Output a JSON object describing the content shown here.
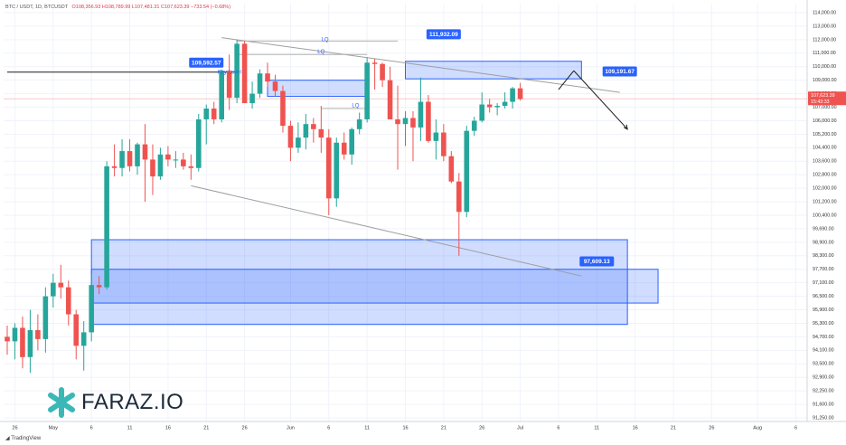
{
  "header": {
    "symbol": "BTC / USDT, 1D, BTCUSDT",
    "ohlc": "O108,356.93 H108,789.99 L107,481.31 C107,623.39 −733.54 (−0.68%)"
  },
  "brand": {
    "name": "FARAZ.IO",
    "footer": "TradingView"
  },
  "colors": {
    "up": "#26a69a",
    "down": "#ef5350",
    "zone_fill": "#2962ff",
    "zone_border": "#2962ff",
    "label_bg": "#2962ff",
    "grid": "#f0f3fa",
    "price_line": "#ef5350"
  },
  "chart_data": {
    "type": "candlestick",
    "y_axis": {
      "min": 91250,
      "max": 114000,
      "ticks": [
        "114,000.00",
        "113,000.00",
        "112,000.00",
        "111,000.00",
        "110,000.00",
        "109,000.00",
        "108,000.00",
        "107,000.00",
        "106,000.00",
        "105,200.00",
        "104,400.00",
        "103,600.00",
        "102,800.00",
        "102,000.00",
        "101,200.00",
        "100,400.00",
        "99,690.00",
        "98,900.00",
        "98,300.00",
        "97,700.00",
        "97,100.00",
        "96,500.00",
        "95,900.00",
        "95,300.00",
        "94,700.00",
        "94,100.00",
        "93,500.00",
        "92,900.00",
        "92,250.00",
        "91,600.00",
        "91,250.00"
      ],
      "tick_values": [
        114000,
        113000,
        112000,
        111000,
        110000,
        109000,
        108000,
        107000,
        106000,
        105200,
        104400,
        103600,
        102800,
        102000,
        101200,
        100400,
        99690,
        98900,
        98300,
        97700,
        97100,
        96500,
        95900,
        95300,
        94700,
        94100,
        93500,
        92900,
        92250,
        91600,
        91250
      ]
    },
    "x_axis": {
      "labels": [
        "26",
        "May",
        "6",
        "11",
        "16",
        "21",
        "26",
        "Jun",
        "6",
        "11",
        "16",
        "21",
        "26",
        "Jul",
        "6",
        "11",
        "16",
        "21",
        "26",
        "Aug",
        "6"
      ],
      "label_day_index": [
        -4,
        1,
        6,
        11,
        16,
        21,
        26,
        32,
        37,
        42,
        47,
        52,
        57,
        62,
        67,
        72,
        77,
        82,
        87,
        93,
        98
      ],
      "start_day_index": -5,
      "end_day_index": 99
    },
    "current_price": {
      "value": "107,623.39",
      "countdown": "15:43:33",
      "y": 107623
    },
    "candles": [
      {
        "d": -5,
        "o": 94700,
        "h": 95200,
        "l": 93900,
        "c": 94500
      },
      {
        "d": -4,
        "o": 94500,
        "h": 95300,
        "l": 93700,
        "c": 95100
      },
      {
        "d": -3,
        "o": 95100,
        "h": 95600,
        "l": 93300,
        "c": 93800
      },
      {
        "d": -2,
        "o": 93800,
        "h": 95900,
        "l": 93100,
        "c": 95000
      },
      {
        "d": -1,
        "o": 95000,
        "h": 95700,
        "l": 94100,
        "c": 94600
      },
      {
        "d": 0,
        "o": 94600,
        "h": 96900,
        "l": 94000,
        "c": 96500
      },
      {
        "d": 1,
        "o": 96500,
        "h": 97500,
        "l": 96000,
        "c": 97100
      },
      {
        "d": 2,
        "o": 97100,
        "h": 97900,
        "l": 96400,
        "c": 96900
      },
      {
        "d": 3,
        "o": 96900,
        "h": 97200,
        "l": 95200,
        "c": 95700
      },
      {
        "d": 4,
        "o": 95700,
        "h": 95900,
        "l": 93700,
        "c": 94300
      },
      {
        "d": 5,
        "o": 94300,
        "h": 95400,
        "l": 93200,
        "c": 94900
      },
      {
        "d": 6,
        "o": 94900,
        "h": 97500,
        "l": 94500,
        "c": 97000
      },
      {
        "d": 7,
        "o": 97000,
        "h": 97400,
        "l": 96600,
        "c": 96900
      },
      {
        "d": 8,
        "o": 96900,
        "h": 103600,
        "l": 96800,
        "c": 103300
      },
      {
        "d": 9,
        "o": 103300,
        "h": 104600,
        "l": 102700,
        "c": 103200
      },
      {
        "d": 10,
        "o": 103200,
        "h": 104900,
        "l": 102700,
        "c": 104200
      },
      {
        "d": 11,
        "o": 104200,
        "h": 104900,
        "l": 103000,
        "c": 103300
      },
      {
        "d": 12,
        "o": 103300,
        "h": 104700,
        "l": 102800,
        "c": 104600
      },
      {
        "d": 13,
        "o": 104600,
        "h": 105800,
        "l": 101200,
        "c": 103700
      },
      {
        "d": 14,
        "o": 103700,
        "h": 104600,
        "l": 101600,
        "c": 102700
      },
      {
        "d": 15,
        "o": 102700,
        "h": 104400,
        "l": 102500,
        "c": 104000
      },
      {
        "d": 16,
        "o": 104000,
        "h": 104500,
        "l": 103300,
        "c": 103700
      },
      {
        "d": 17,
        "o": 103700,
        "h": 104200,
        "l": 103200,
        "c": 103700
      },
      {
        "d": 18,
        "o": 103700,
        "h": 104100,
        "l": 103100,
        "c": 103300
      },
      {
        "d": 19,
        "o": 103300,
        "h": 104000,
        "l": 102500,
        "c": 103200
      },
      {
        "d": 20,
        "o": 103200,
        "h": 106500,
        "l": 103000,
        "c": 106100
      },
      {
        "d": 21,
        "o": 106100,
        "h": 107200,
        "l": 104600,
        "c": 106900
      },
      {
        "d": 22,
        "o": 106900,
        "h": 107400,
        "l": 105800,
        "c": 106100
      },
      {
        "d": 23,
        "o": 106100,
        "h": 109800,
        "l": 105900,
        "c": 109700
      },
      {
        "d": 24,
        "o": 109700,
        "h": 110900,
        "l": 106800,
        "c": 107700
      },
      {
        "d": 25,
        "o": 107700,
        "h": 112000,
        "l": 107300,
        "c": 111700
      },
      {
        "d": 26,
        "o": 111700,
        "h": 111900,
        "l": 107400,
        "c": 107300
      },
      {
        "d": 27,
        "o": 107300,
        "h": 108900,
        "l": 106900,
        "c": 108000
      },
      {
        "d": 28,
        "o": 108000,
        "h": 109800,
        "l": 107700,
        "c": 109500
      },
      {
        "d": 29,
        "o": 109500,
        "h": 110300,
        "l": 108500,
        "c": 108900
      },
      {
        "d": 30,
        "o": 108900,
        "h": 109400,
        "l": 107800,
        "c": 108200
      },
      {
        "d": 31,
        "o": 108200,
        "h": 108600,
        "l": 105300,
        "c": 105700
      },
      {
        "d": 32,
        "o": 105700,
        "h": 106000,
        "l": 103600,
        "c": 104400
      },
      {
        "d": 33,
        "o": 104400,
        "h": 105900,
        "l": 104100,
        "c": 105000
      },
      {
        "d": 34,
        "o": 105000,
        "h": 106500,
        "l": 104300,
        "c": 105800
      },
      {
        "d": 35,
        "o": 105800,
        "h": 106200,
        "l": 104700,
        "c": 105500
      },
      {
        "d": 36,
        "o": 105500,
        "h": 107100,
        "l": 104100,
        "c": 105000
      },
      {
        "d": 37,
        "o": 105000,
        "h": 105500,
        "l": 100400,
        "c": 101400
      },
      {
        "d": 38,
        "o": 101400,
        "h": 105000,
        "l": 100900,
        "c": 104700
      },
      {
        "d": 39,
        "o": 104700,
        "h": 105300,
        "l": 103700,
        "c": 104000
      },
      {
        "d": 40,
        "o": 104000,
        "h": 105600,
        "l": 103400,
        "c": 105500
      },
      {
        "d": 41,
        "o": 105500,
        "h": 106600,
        "l": 105200,
        "c": 106100
      },
      {
        "d": 42,
        "o": 106100,
        "h": 110700,
        "l": 105900,
        "c": 110300
      },
      {
        "d": 43,
        "o": 110300,
        "h": 110600,
        "l": 108300,
        "c": 110200
      },
      {
        "d": 44,
        "o": 110200,
        "h": 110300,
        "l": 108500,
        "c": 109000
      },
      {
        "d": 45,
        "o": 109000,
        "h": 110000,
        "l": 106100,
        "c": 106100
      },
      {
        "d": 46,
        "o": 106100,
        "h": 108600,
        "l": 103100,
        "c": 105800
      },
      {
        "d": 47,
        "o": 105800,
        "h": 106700,
        "l": 104500,
        "c": 106200
      },
      {
        "d": 48,
        "o": 106200,
        "h": 106700,
        "l": 103600,
        "c": 105600
      },
      {
        "d": 49,
        "o": 105600,
        "h": 109200,
        "l": 104800,
        "c": 107400
      },
      {
        "d": 50,
        "o": 107400,
        "h": 107900,
        "l": 104700,
        "c": 104800
      },
      {
        "d": 51,
        "o": 104800,
        "h": 106100,
        "l": 103700,
        "c": 105300
      },
      {
        "d": 52,
        "o": 105300,
        "h": 105800,
        "l": 103600,
        "c": 103900
      },
      {
        "d": 53,
        "o": 103900,
        "h": 104200,
        "l": 102300,
        "c": 102400
      },
      {
        "d": 54,
        "o": 102400,
        "h": 102900,
        "l": 98300,
        "c": 100600
      },
      {
        "d": 55,
        "o": 100600,
        "h": 105700,
        "l": 100300,
        "c": 105400
      },
      {
        "d": 56,
        "o": 105400,
        "h": 106300,
        "l": 105100,
        "c": 106000
      },
      {
        "d": 57,
        "o": 106000,
        "h": 108100,
        "l": 105900,
        "c": 107200
      },
      {
        "d": 58,
        "o": 107200,
        "h": 107600,
        "l": 106600,
        "c": 107000
      },
      {
        "d": 59,
        "o": 107000,
        "h": 107300,
        "l": 106400,
        "c": 107100
      },
      {
        "d": 60,
        "o": 107100,
        "h": 108100,
        "l": 106900,
        "c": 107400
      },
      {
        "d": 61,
        "o": 107400,
        "h": 108500,
        "l": 106900,
        "c": 108400
      },
      {
        "d": 62,
        "o": 108400,
        "h": 108800,
        "l": 107500,
        "c": 107600
      }
    ],
    "zones": [
      {
        "name": "zone-upper",
        "x1": 47,
        "x2": 70,
        "y1": 110400,
        "y2": 109100
      },
      {
        "name": "zone-mid",
        "x1": 29,
        "x2": 42,
        "y1": 109000,
        "y2": 107800
      },
      {
        "name": "zone-lower-large",
        "x1": 6,
        "x2": 76,
        "y1": 99050,
        "y2": 95250
      },
      {
        "name": "zone-lower-small",
        "x1": 6,
        "x2": 80,
        "y1": 97700,
        "y2": 96200
      }
    ],
    "lines": [
      {
        "name": "upper-trendline",
        "x1": 23,
        "y1": 112150,
        "x2": 75,
        "y2": 108100,
        "color": "#9e9e9e"
      },
      {
        "name": "lower-trendline",
        "x1": 19,
        "y1": 102150,
        "x2": 70,
        "y2": 97400,
        "color": "#9e9e9e"
      },
      {
        "name": "lq-line-1",
        "x1": 25,
        "y1": 111900,
        "x2": 46,
        "y2": 111900,
        "color": "#b0b0b0"
      },
      {
        "name": "lq-line-2",
        "x1": 25,
        "y1": 110900,
        "x2": 42,
        "y2": 110900,
        "color": "#b0b0b0"
      },
      {
        "name": "lq-line-3",
        "x1": 36,
        "y1": 106900,
        "x2": 42,
        "y2": 106900,
        "color": "#b0b0b0"
      },
      {
        "name": "key-level-line",
        "x1": -5,
        "y1": 109600,
        "x2": 25,
        "y2": 109600,
        "color": "#1a1a1a"
      },
      {
        "name": "proj-up",
        "x1": 67,
        "y1": 108300,
        "x2": 69,
        "y2": 109700,
        "color": "#1a1a1a"
      },
      {
        "name": "proj-down",
        "x1": 69,
        "y1": 109700,
        "x2": 76,
        "y2": 105500,
        "color": "#1a1a1a"
      }
    ],
    "annotations": [
      {
        "name": "lq-label-1",
        "text": "LQ",
        "x": 36.5,
        "y": 112000
      },
      {
        "name": "lq-label-2",
        "text": "LQ",
        "x": 36,
        "y": 111100
      },
      {
        "name": "lq-label-3",
        "text": "LQ",
        "x": 40.5,
        "y": 107100
      },
      {
        "name": "key-level-label",
        "text": "Key Level",
        "x": 24,
        "y": 109600
      }
    ],
    "price_labels": [
      {
        "name": "label-111932",
        "text": "111,932.09",
        "x": 52,
        "y": 112400
      },
      {
        "name": "label-109592",
        "text": "109,592.57",
        "x": 21,
        "y": 110300
      },
      {
        "name": "label-109191",
        "text": "109,191.67",
        "x": 75,
        "y": 109650
      },
      {
        "name": "label-97609",
        "text": "97,609.13",
        "x": 72,
        "y": 98050
      }
    ]
  }
}
